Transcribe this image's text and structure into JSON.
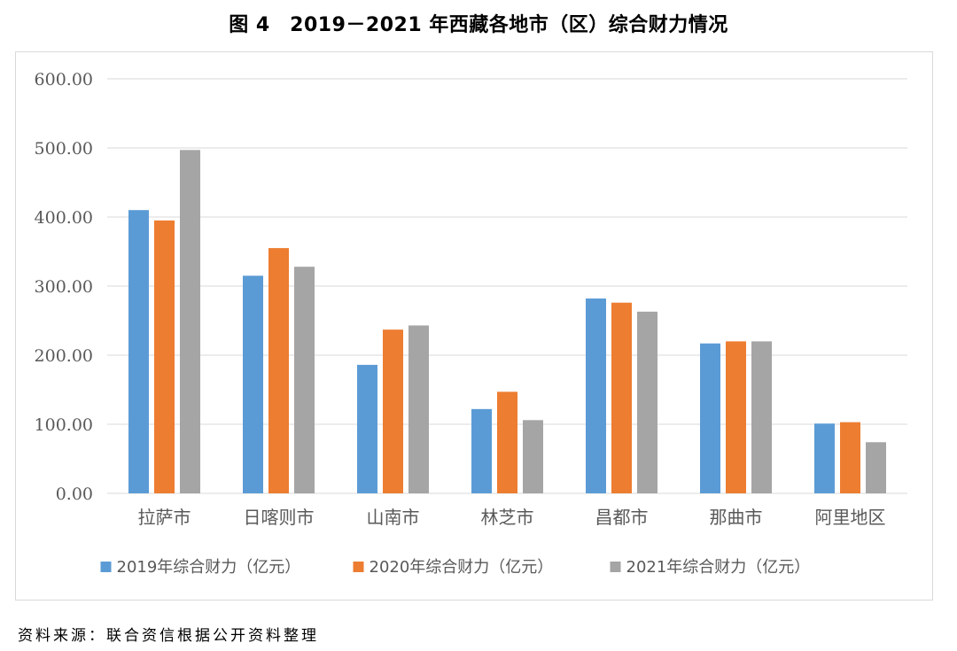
{
  "title": "图 4　2019－2021 年西藏各地市（区）综合财力情况",
  "source_note": "资料来源：联合资信根据公开资料整理",
  "colors": {
    "series_2019": "#5b9bd5",
    "series_2020": "#ed7d31",
    "series_2021": "#a5a5a5",
    "grid": "#d9d9d9",
    "text": "#595959"
  },
  "chart_data": {
    "type": "bar",
    "categories": [
      "拉萨市",
      "日喀则市",
      "山南市",
      "林芝市",
      "昌都市",
      "那曲市",
      "阿里地区"
    ],
    "series": [
      {
        "name": "2019年综合财力（亿元）",
        "values": [
          410,
          315,
          186,
          122,
          282,
          217,
          101
        ]
      },
      {
        "name": "2020年综合财力（亿元）",
        "values": [
          395,
          355,
          237,
          147,
          276,
          220,
          103
        ]
      },
      {
        "name": "2021年综合财力（亿元）",
        "values": [
          497,
          328,
          243,
          106,
          263,
          220,
          74
        ]
      }
    ],
    "yticks": [
      "0.00",
      "100.00",
      "200.00",
      "300.00",
      "400.00",
      "500.00",
      "600.00"
    ],
    "ylim": [
      0,
      600
    ],
    "grid": true,
    "legend_position": "bottom"
  }
}
